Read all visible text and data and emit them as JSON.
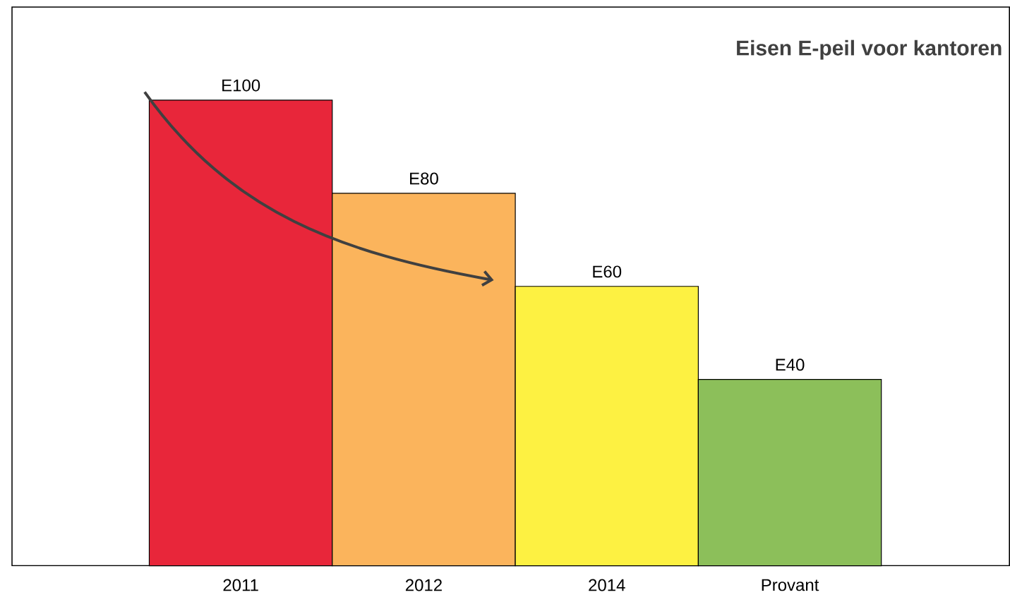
{
  "chart_data": {
    "type": "bar",
    "title": "Eisen E-peil voor kantoren",
    "categories": [
      "2011",
      "2012",
      "2014",
      "Provant"
    ],
    "values": [
      100,
      80,
      60,
      40
    ],
    "value_labels": [
      "E100",
      "E80",
      "E60",
      "E40"
    ],
    "colors": [
      "#e8263a",
      "#fbb45c",
      "#fdf142",
      "#8cbf5a"
    ],
    "grid": false
  }
}
